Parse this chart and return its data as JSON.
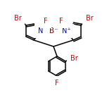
{
  "bg_color": "#ffffff",
  "bond_color": "#000000",
  "atom_colors": {
    "Br": "#cc0000",
    "N": "#0000cc",
    "B": "#8B0000",
    "F": "#cc0000",
    "C": "#000000"
  },
  "font_size": 7.0,
  "line_width": 1.1,
  "s": 14.0
}
